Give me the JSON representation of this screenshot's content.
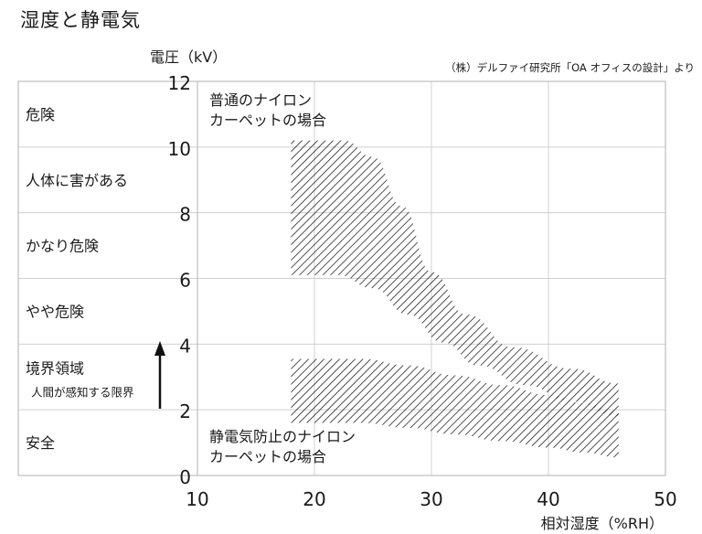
{
  "title": "湿度と静電気",
  "source": "（株）デルファイ研究所「OA オフィスの設計」より",
  "chart_data": {
    "type": "area",
    "xlabel": "相対湿度（%RH）",
    "ylabel": "電圧（kV）",
    "xlim": [
      10,
      50
    ],
    "ylim": [
      0,
      12
    ],
    "xticks": [
      10,
      20,
      30,
      40,
      50
    ],
    "yticks": [
      0,
      2,
      4,
      6,
      8,
      10,
      12
    ],
    "grid": true,
    "colors": {
      "hatch": "#1a1a1a",
      "grid": "#d0d0d0",
      "frame": "#bdbdbd"
    },
    "levels": [
      {
        "label": "危険",
        "range": [
          10,
          12
        ]
      },
      {
        "label": "人体に害がある",
        "range": [
          8,
          10
        ]
      },
      {
        "label": "かなり危険",
        "range": [
          6,
          8
        ]
      },
      {
        "label": "やや危険",
        "range": [
          4,
          6
        ]
      },
      {
        "label": "境界領域",
        "sublabel": "人間が感知する限界",
        "range": [
          2,
          4
        ]
      },
      {
        "label": "安全",
        "range": [
          0,
          2
        ]
      }
    ],
    "series": [
      {
        "name": "普通のナイロン\nカーペットの場合",
        "x_start": 18,
        "x_end": 46,
        "upper": [
          [
            18,
            10.2
          ],
          [
            22.5,
            10.2
          ],
          [
            25,
            9.7
          ],
          [
            27.5,
            8.2
          ],
          [
            30,
            6.2
          ],
          [
            33,
            4.9
          ],
          [
            37,
            3.9
          ],
          [
            42,
            3.25
          ],
          [
            46,
            2.8
          ]
        ],
        "lower": [
          [
            18,
            6.1
          ],
          [
            22,
            6.1
          ],
          [
            25,
            5.7
          ],
          [
            28,
            4.9
          ],
          [
            31,
            4.05
          ],
          [
            34,
            3.35
          ],
          [
            38,
            2.75
          ],
          [
            42,
            2.25
          ],
          [
            46,
            1.8
          ]
        ]
      },
      {
        "name": "静電気防止のナイロン\nカーペットの場合",
        "x_start": 18,
        "x_end": 46,
        "upper": [
          [
            18,
            3.55
          ],
          [
            24,
            3.55
          ],
          [
            28,
            3.35
          ],
          [
            32,
            3.05
          ],
          [
            36,
            2.75
          ],
          [
            40,
            2.45
          ],
          [
            43,
            2.2
          ],
          [
            46,
            1.95
          ]
        ],
        "lower": [
          [
            18,
            1.6
          ],
          [
            24,
            1.6
          ],
          [
            28,
            1.45
          ],
          [
            32,
            1.25
          ],
          [
            36,
            1.05
          ],
          [
            40,
            0.85
          ],
          [
            43,
            0.7
          ],
          [
            46,
            0.55
          ]
        ]
      }
    ]
  }
}
